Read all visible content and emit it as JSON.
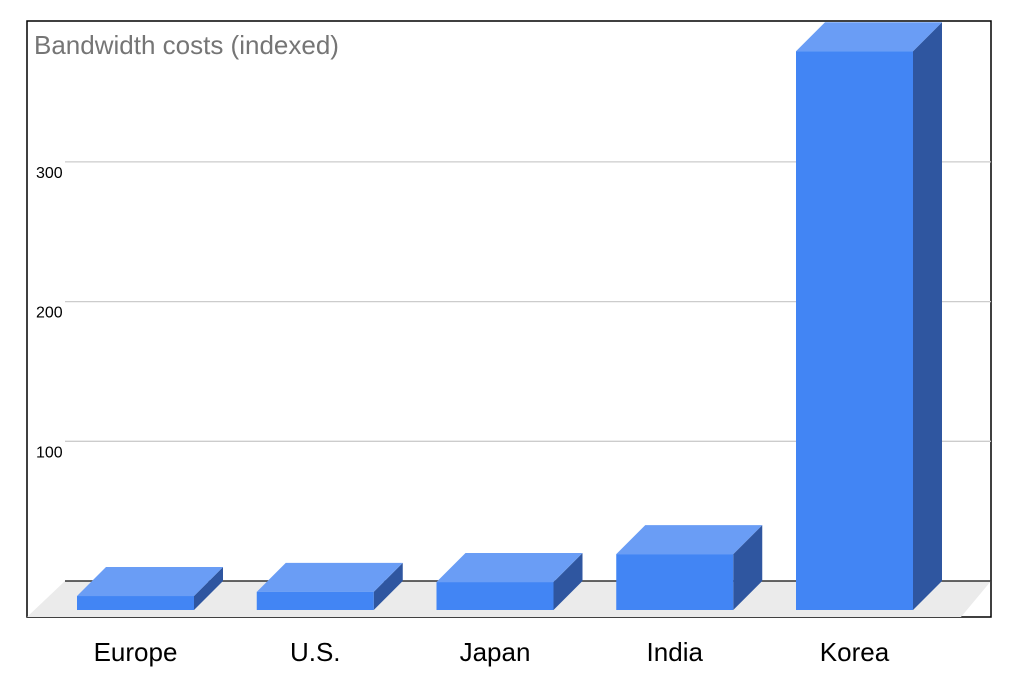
{
  "colors": {
    "bar_front": "#4285f4",
    "bar_top": "#6a9df5",
    "bar_side": "#2f56a0",
    "floor": "#ebebeb",
    "grid": "#cccccc",
    "title": "#757575",
    "axis_text": "#000000",
    "frame": "#000000"
  },
  "chart_data": {
    "type": "bar",
    "title": "Bandwidth costs (indexed)",
    "xlabel": "",
    "ylabel": "",
    "categories": [
      "Europe",
      "U.S.",
      "Japan",
      "India",
      "Korea"
    ],
    "values": [
      10,
      13,
      20,
      40,
      400
    ],
    "ylim": [
      0,
      400
    ],
    "yticks": [
      100,
      200,
      300
    ],
    "ytick_labels": [
      "100",
      "200",
      "300"
    ],
    "grid": true,
    "legend": "none",
    "style": "3d"
  }
}
